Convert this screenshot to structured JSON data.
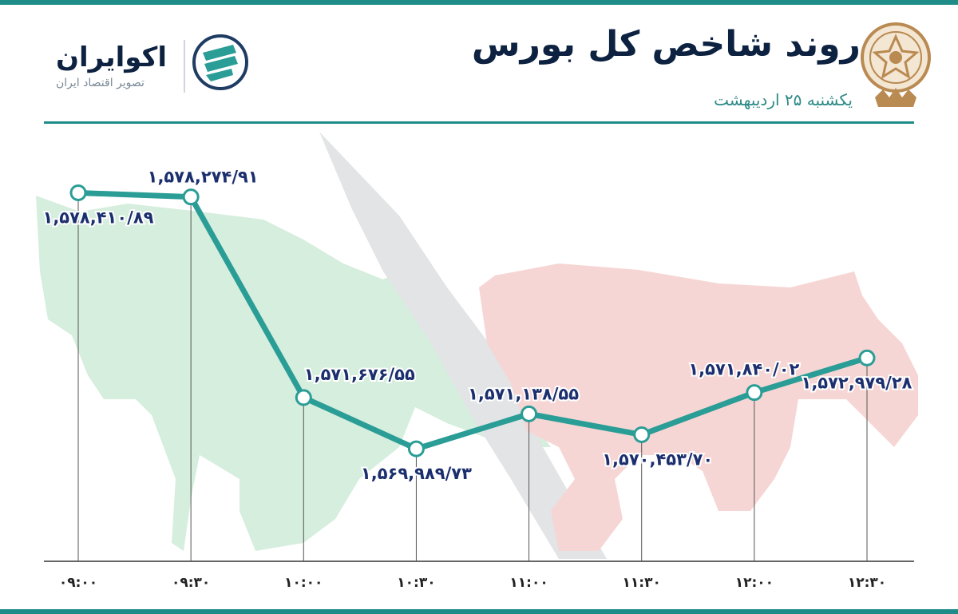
{
  "header": {
    "title": "روند شاخص کل بورس",
    "subtitle": "یکشنبه ۲۵ اردیبهشت"
  },
  "brand": {
    "name": "اکوایران",
    "tagline": "تصویر اقتصاد ایران",
    "logo_icon": "ecoiran-logo-icon",
    "emblem_icon": "exchange-emblem-icon"
  },
  "colors": {
    "line": "#2a9d96",
    "label": "#1b2f6e",
    "accent": "#1f8c87",
    "bull_watermark": "#d6eedd",
    "bear_watermark": "#f6d6d4"
  },
  "chart_data": {
    "type": "line",
    "categories": [
      "۰۹:۰۰",
      "۰۹:۳۰",
      "۱۰:۰۰",
      "۱۰:۳۰",
      "۱۱:۰۰",
      "۱۱:۳۰",
      "۱۲:۰۰",
      "۱۲:۳۰"
    ],
    "values": [
      1578410.89,
      1578274.91,
      1571676.55,
      1569989.73,
      1571138.55,
      1570453.7,
      1571840.02,
      1572979.28
    ],
    "data_labels": [
      "۱,۵۷۸,۴۱۰/۸۹",
      "۱,۵۷۸,۲۷۴/۹۱",
      "۱,۵۷۱,۶۷۶/۵۵",
      "۱,۵۶۹,۹۸۹/۷۳",
      "۱,۵۷۱,۱۳۸/۵۵",
      "۱,۵۷۰,۴۵۳/۷۰",
      "۱,۵۷۱,۸۴۰/۰۲",
      "۱,۵۷۲,۹۷۹/۲۸"
    ],
    "ylim": [
      1566500,
      1579500
    ],
    "grid": false,
    "legend": "none"
  }
}
